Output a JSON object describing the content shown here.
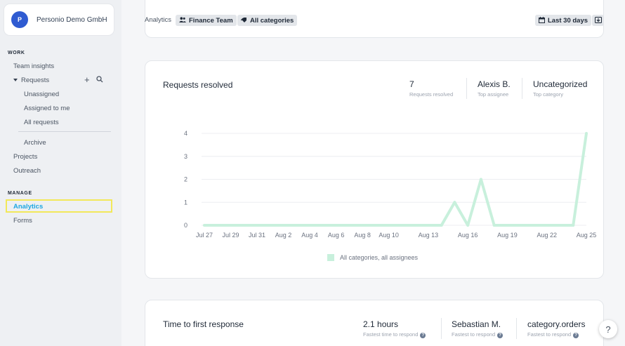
{
  "org": {
    "initial": "P",
    "name": "Personio Demo GmbH"
  },
  "sidebar": {
    "work_label": "WORK",
    "manage_label": "MANAGE",
    "team_insights": "Team insights",
    "requests": "Requests",
    "unassigned": "Unassigned",
    "assigned_to_me": "Assigned to me",
    "all_requests": "All requests",
    "archive": "Archive",
    "projects": "Projects",
    "outreach": "Outreach",
    "analytics": "Analytics",
    "forms": "Forms"
  },
  "header": {
    "crumb": "Analytics",
    "team_chip": "Finance Team",
    "category_chip": "All categories",
    "date_chip": "Last 30 days"
  },
  "requests_card": {
    "title": "Requests resolved",
    "stats": [
      {
        "value": "7",
        "label": "Requests resolved"
      },
      {
        "value": "Alexis B.",
        "label": "Top assignee"
      },
      {
        "value": "Uncategorized",
        "label": "Top category"
      }
    ],
    "legend": "All categories, all assignees"
  },
  "response_card": {
    "title": "Time to first response",
    "stats": [
      {
        "value": "2.1 hours",
        "label": "Fastest time to respond"
      },
      {
        "value": "Sebastian M.",
        "label": "Fastest to respond"
      },
      {
        "value": "category.orders",
        "label": "Fastest to respond"
      }
    ]
  },
  "help_label": "?",
  "colors": {
    "accent": "#1ea7e1",
    "line": "#c8f0dc",
    "avatar": "#2f5bd1",
    "highlight": "#f2e85a"
  },
  "chart_data": {
    "type": "line",
    "x_ticks": [
      "Jul 27",
      "Jul 29",
      "Jul 31",
      "Aug 2",
      "Aug 4",
      "Aug 6",
      "Aug 8",
      "Aug 10",
      "Aug 13",
      "Aug 16",
      "Aug 19",
      "Aug 22",
      "Aug 25"
    ],
    "y_ticks": [
      "0",
      "1",
      "2",
      "3",
      "4"
    ],
    "ylim": [
      0,
      4
    ],
    "x": [
      "Jul 27",
      "Jul 28",
      "Jul 29",
      "Jul 30",
      "Jul 31",
      "Aug 1",
      "Aug 2",
      "Aug 3",
      "Aug 4",
      "Aug 5",
      "Aug 6",
      "Aug 7",
      "Aug 8",
      "Aug 9",
      "Aug 10",
      "Aug 11",
      "Aug 12",
      "Aug 13",
      "Aug 14",
      "Aug 15",
      "Aug 16",
      "Aug 17",
      "Aug 18",
      "Aug 19",
      "Aug 20",
      "Aug 21",
      "Aug 22",
      "Aug 23",
      "Aug 24",
      "Aug 25"
    ],
    "series": [
      {
        "name": "All categories, all assignees",
        "values": [
          0,
          0,
          0,
          0,
          0,
          0,
          0,
          0,
          0,
          0,
          0,
          0,
          0,
          0,
          0,
          0,
          0,
          0,
          0,
          1,
          0,
          2,
          0,
          0,
          0,
          0,
          0,
          0,
          0,
          4
        ]
      }
    ],
    "grid": true
  }
}
